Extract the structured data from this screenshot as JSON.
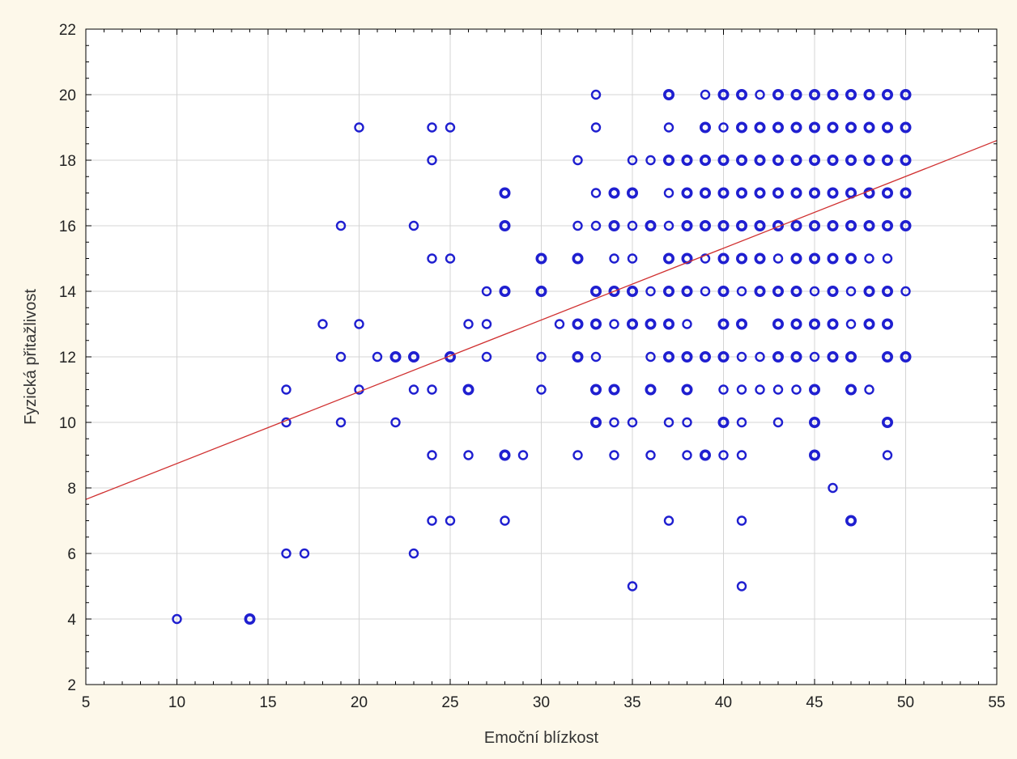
{
  "chart_data": {
    "type": "scatter",
    "title": "",
    "xlabel": "Emoční blízkost",
    "ylabel": "Fyzická přitažlivost",
    "xlim": [
      5,
      55
    ],
    "ylim": [
      2,
      22
    ],
    "xticks": [
      5,
      10,
      15,
      20,
      25,
      30,
      35,
      40,
      45,
      50,
      55
    ],
    "yticks": [
      2,
      4,
      6,
      8,
      10,
      12,
      14,
      16,
      18,
      20,
      22
    ],
    "grid": true,
    "legend": "none",
    "colors": {
      "points": "#1f1fd0",
      "fit_line": "#d03030",
      "plot_bg": "#ffffff",
      "page_bg": "#fdf8ea",
      "grid": "#d4d4d4"
    },
    "fit_line": {
      "x": [
        5,
        55
      ],
      "y": [
        7.65,
        18.6
      ]
    },
    "series": [
      {
        "points": [
          [
            10,
            4,
            1
          ],
          [
            14,
            4,
            2
          ],
          [
            16,
            6,
            1
          ],
          [
            17,
            6,
            1
          ],
          [
            23,
            6,
            1
          ],
          [
            24,
            7,
            1
          ],
          [
            25,
            7,
            1
          ],
          [
            28,
            7,
            1
          ],
          [
            37,
            7,
            1
          ],
          [
            41,
            7,
            1
          ],
          [
            47,
            7,
            2
          ],
          [
            46,
            8,
            1
          ],
          [
            24,
            9,
            1
          ],
          [
            26,
            9,
            1
          ],
          [
            28,
            9,
            2
          ],
          [
            29,
            9,
            1
          ],
          [
            32,
            9,
            1
          ],
          [
            34,
            9,
            1
          ],
          [
            36,
            9,
            1
          ],
          [
            38,
            9,
            1
          ],
          [
            39,
            9,
            2
          ],
          [
            40,
            9,
            1
          ],
          [
            41,
            9,
            1
          ],
          [
            45,
            9,
            2
          ],
          [
            49,
            9,
            1
          ],
          [
            16,
            10,
            1
          ],
          [
            19,
            10,
            1
          ],
          [
            22,
            10,
            1
          ],
          [
            33,
            10,
            2
          ],
          [
            34,
            10,
            1
          ],
          [
            35,
            10,
            1
          ],
          [
            37,
            10,
            1
          ],
          [
            38,
            10,
            1
          ],
          [
            40,
            10,
            2
          ],
          [
            41,
            10,
            1
          ],
          [
            43,
            10,
            1
          ],
          [
            45,
            10,
            2
          ],
          [
            49,
            10,
            2
          ],
          [
            16,
            11,
            1
          ],
          [
            20,
            11,
            1
          ],
          [
            23,
            11,
            1
          ],
          [
            24,
            11,
            1
          ],
          [
            26,
            11,
            2
          ],
          [
            30,
            11,
            1
          ],
          [
            33,
            11,
            2
          ],
          [
            34,
            11,
            2
          ],
          [
            36,
            11,
            2
          ],
          [
            38,
            11,
            2
          ],
          [
            40,
            11,
            1
          ],
          [
            41,
            11,
            1
          ],
          [
            42,
            11,
            1
          ],
          [
            43,
            11,
            1
          ],
          [
            44,
            11,
            1
          ],
          [
            45,
            11,
            2
          ],
          [
            47,
            11,
            2
          ],
          [
            48,
            11,
            1
          ],
          [
            19,
            12,
            1
          ],
          [
            21,
            12,
            1
          ],
          [
            22,
            12,
            2
          ],
          [
            23,
            12,
            2
          ],
          [
            25,
            12,
            2
          ],
          [
            27,
            12,
            1
          ],
          [
            30,
            12,
            1
          ],
          [
            32,
            12,
            2
          ],
          [
            33,
            12,
            1
          ],
          [
            36,
            12,
            1
          ],
          [
            37,
            12,
            2
          ],
          [
            38,
            12,
            2
          ],
          [
            39,
            12,
            2
          ],
          [
            40,
            12,
            2
          ],
          [
            41,
            12,
            1
          ],
          [
            42,
            12,
            1
          ],
          [
            43,
            12,
            2
          ],
          [
            44,
            12,
            2
          ],
          [
            45,
            12,
            1
          ],
          [
            46,
            12,
            2
          ],
          [
            47,
            12,
            2
          ],
          [
            49,
            12,
            2
          ],
          [
            50,
            12,
            2
          ],
          [
            18,
            13,
            1
          ],
          [
            20,
            13,
            1
          ],
          [
            26,
            13,
            1
          ],
          [
            27,
            13,
            1
          ],
          [
            31,
            13,
            1
          ],
          [
            32,
            13,
            2
          ],
          [
            33,
            13,
            2
          ],
          [
            34,
            13,
            1
          ],
          [
            35,
            13,
            2
          ],
          [
            36,
            13,
            2
          ],
          [
            37,
            13,
            2
          ],
          [
            38,
            13,
            1
          ],
          [
            40,
            13,
            2
          ],
          [
            41,
            13,
            2
          ],
          [
            43,
            13,
            2
          ],
          [
            44,
            13,
            2
          ],
          [
            45,
            13,
            2
          ],
          [
            46,
            13,
            2
          ],
          [
            47,
            13,
            1
          ],
          [
            48,
            13,
            2
          ],
          [
            49,
            13,
            2
          ],
          [
            27,
            14,
            1
          ],
          [
            28,
            14,
            2
          ],
          [
            30,
            14,
            2
          ],
          [
            33,
            14,
            2
          ],
          [
            34,
            14,
            2
          ],
          [
            35,
            14,
            2
          ],
          [
            36,
            14,
            1
          ],
          [
            37,
            14,
            2
          ],
          [
            38,
            14,
            2
          ],
          [
            39,
            14,
            1
          ],
          [
            40,
            14,
            2
          ],
          [
            41,
            14,
            1
          ],
          [
            42,
            14,
            2
          ],
          [
            43,
            14,
            2
          ],
          [
            44,
            14,
            2
          ],
          [
            45,
            14,
            1
          ],
          [
            46,
            14,
            2
          ],
          [
            47,
            14,
            1
          ],
          [
            48,
            14,
            2
          ],
          [
            49,
            14,
            2
          ],
          [
            50,
            14,
            1
          ],
          [
            24,
            15,
            1
          ],
          [
            25,
            15,
            1
          ],
          [
            30,
            15,
            2
          ],
          [
            32,
            15,
            2
          ],
          [
            34,
            15,
            1
          ],
          [
            35,
            15,
            1
          ],
          [
            37,
            15,
            2
          ],
          [
            38,
            15,
            2
          ],
          [
            39,
            15,
            1
          ],
          [
            40,
            15,
            2
          ],
          [
            41,
            15,
            2
          ],
          [
            42,
            15,
            2
          ],
          [
            43,
            15,
            1
          ],
          [
            44,
            15,
            2
          ],
          [
            45,
            15,
            2
          ],
          [
            46,
            15,
            2
          ],
          [
            47,
            15,
            2
          ],
          [
            48,
            15,
            1
          ],
          [
            49,
            15,
            1
          ],
          [
            19,
            16,
            1
          ],
          [
            23,
            16,
            1
          ],
          [
            28,
            16,
            2
          ],
          [
            32,
            16,
            1
          ],
          [
            33,
            16,
            1
          ],
          [
            34,
            16,
            2
          ],
          [
            35,
            16,
            1
          ],
          [
            36,
            16,
            2
          ],
          [
            37,
            16,
            1
          ],
          [
            38,
            16,
            2
          ],
          [
            39,
            16,
            2
          ],
          [
            40,
            16,
            2
          ],
          [
            41,
            16,
            2
          ],
          [
            42,
            16,
            2
          ],
          [
            43,
            16,
            2
          ],
          [
            44,
            16,
            2
          ],
          [
            45,
            16,
            2
          ],
          [
            46,
            16,
            2
          ],
          [
            47,
            16,
            2
          ],
          [
            48,
            16,
            2
          ],
          [
            49,
            16,
            2
          ],
          [
            50,
            16,
            2
          ],
          [
            28,
            17,
            2
          ],
          [
            33,
            17,
            1
          ],
          [
            34,
            17,
            2
          ],
          [
            35,
            17,
            2
          ],
          [
            37,
            17,
            1
          ],
          [
            38,
            17,
            2
          ],
          [
            39,
            17,
            2
          ],
          [
            40,
            17,
            2
          ],
          [
            41,
            17,
            2
          ],
          [
            42,
            17,
            2
          ],
          [
            43,
            17,
            2
          ],
          [
            44,
            17,
            2
          ],
          [
            45,
            17,
            2
          ],
          [
            46,
            17,
            2
          ],
          [
            47,
            17,
            2
          ],
          [
            48,
            17,
            2
          ],
          [
            49,
            17,
            2
          ],
          [
            50,
            17,
            2
          ],
          [
            24,
            18,
            1
          ],
          [
            32,
            18,
            1
          ],
          [
            35,
            18,
            1
          ],
          [
            36,
            18,
            1
          ],
          [
            37,
            18,
            2
          ],
          [
            38,
            18,
            2
          ],
          [
            39,
            18,
            2
          ],
          [
            40,
            18,
            2
          ],
          [
            41,
            18,
            2
          ],
          [
            42,
            18,
            2
          ],
          [
            43,
            18,
            2
          ],
          [
            44,
            18,
            2
          ],
          [
            45,
            18,
            2
          ],
          [
            46,
            18,
            2
          ],
          [
            47,
            18,
            2
          ],
          [
            48,
            18,
            2
          ],
          [
            49,
            18,
            2
          ],
          [
            50,
            18,
            2
          ],
          [
            20,
            19,
            1
          ],
          [
            24,
            19,
            1
          ],
          [
            25,
            19,
            1
          ],
          [
            33,
            19,
            1
          ],
          [
            37,
            19,
            1
          ],
          [
            39,
            19,
            2
          ],
          [
            40,
            19,
            1
          ],
          [
            41,
            19,
            2
          ],
          [
            42,
            19,
            2
          ],
          [
            43,
            19,
            2
          ],
          [
            44,
            19,
            2
          ],
          [
            45,
            19,
            2
          ],
          [
            46,
            19,
            2
          ],
          [
            47,
            19,
            2
          ],
          [
            48,
            19,
            2
          ],
          [
            49,
            19,
            2
          ],
          [
            50,
            19,
            2
          ],
          [
            33,
            20,
            1
          ],
          [
            37,
            20,
            2
          ],
          [
            39,
            20,
            1
          ],
          [
            40,
            20,
            2
          ],
          [
            41,
            20,
            2
          ],
          [
            42,
            20,
            1
          ],
          [
            43,
            20,
            2
          ],
          [
            44,
            20,
            2
          ],
          [
            45,
            20,
            2
          ],
          [
            46,
            20,
            2
          ],
          [
            47,
            20,
            2
          ],
          [
            48,
            20,
            2
          ],
          [
            49,
            20,
            2
          ],
          [
            50,
            20,
            2
          ],
          [
            35,
            5,
            1
          ],
          [
            41,
            5,
            1
          ]
        ]
      }
    ]
  }
}
